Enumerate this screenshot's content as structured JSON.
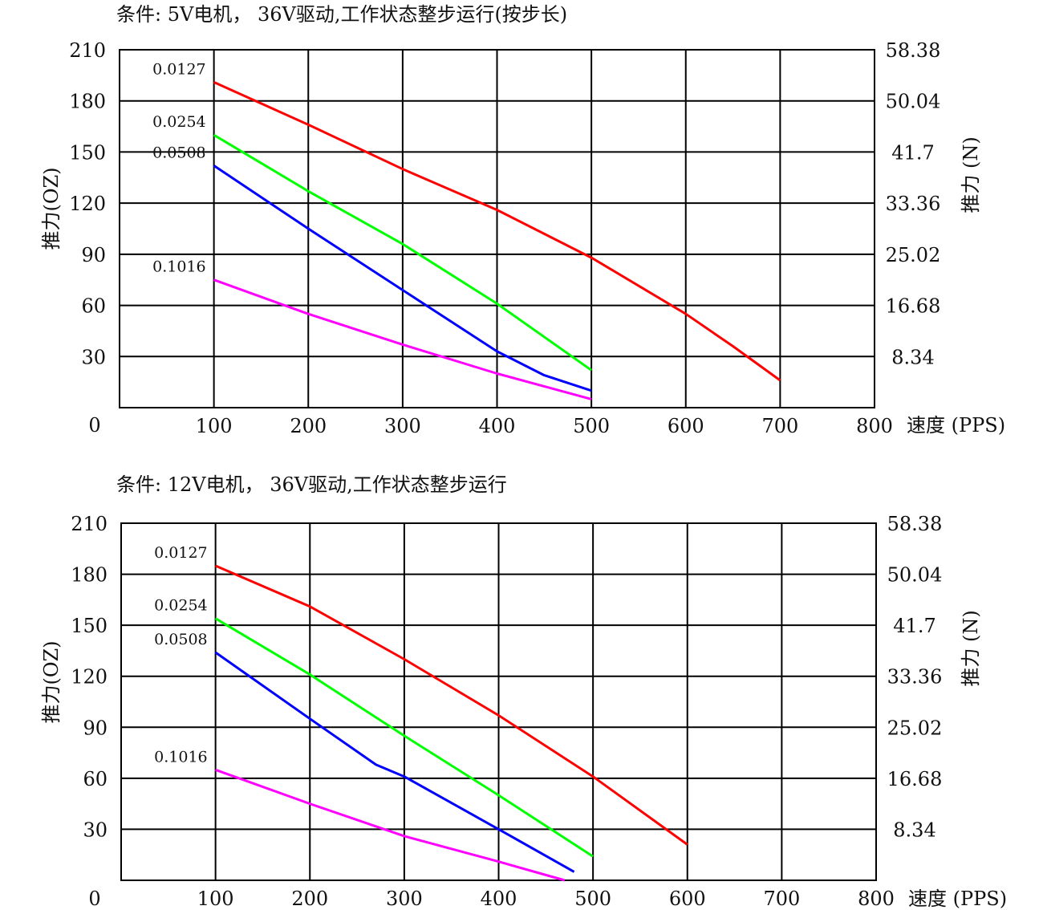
{
  "charts": [
    {
      "condition": "条件: 5V电机， 36V驱动,工作状态整步运行(按步长)",
      "left_axis_title": "推力(OZ)",
      "right_axis_title": "推力 (N)",
      "x_axis_title": "速度 (PPS)",
      "zero_label": "0"
    },
    {
      "condition": "条件: 12V电机， 36V驱动,工作状态整步运行",
      "left_axis_title": "推力(OZ)",
      "right_axis_title": "推力 (N)",
      "x_axis_title": "速度 (PPS)",
      "zero_label": "0"
    }
  ],
  "chart_data": [
    {
      "type": "line",
      "x_ticks": [
        "100",
        "200",
        "300",
        "400",
        "500",
        "600",
        "700",
        "800"
      ],
      "y_ticks": [
        "30",
        "60",
        "90",
        "120",
        "150",
        "180",
        "210"
      ],
      "y_right_ticks": [
        "8.34",
        "16.68",
        "25.02",
        "33.36",
        "41.7",
        "50.04",
        "58.38"
      ],
      "xlim": [
        0,
        800
      ],
      "ylim": [
        0,
        210
      ],
      "grid": true,
      "series": [
        {
          "name": "0.0127",
          "color": "#ff0000",
          "x": [
            100,
            200,
            300,
            400,
            500,
            600,
            650,
            700
          ],
          "y": [
            191,
            166,
            140,
            116,
            88,
            55,
            36,
            16
          ]
        },
        {
          "name": "0.0254",
          "color": "#00ff00",
          "x": [
            100,
            200,
            300,
            400,
            500
          ],
          "y": [
            160,
            127,
            96,
            61,
            22
          ]
        },
        {
          "name": "0.0508",
          "color": "#0000ff",
          "x": [
            100,
            200,
            300,
            400,
            450,
            500
          ],
          "y": [
            142,
            105,
            69,
            33,
            19,
            10
          ]
        },
        {
          "name": "0.1016",
          "color": "#ff00ff",
          "x": [
            100,
            200,
            300,
            400,
            500
          ],
          "y": [
            75,
            55,
            37,
            20,
            5
          ]
        }
      ]
    },
    {
      "type": "line",
      "x_ticks": [
        "100",
        "200",
        "300",
        "400",
        "500",
        "600",
        "700",
        "800"
      ],
      "y_ticks": [
        "30",
        "60",
        "90",
        "120",
        "150",
        "180",
        "210"
      ],
      "y_right_ticks": [
        "8.34",
        "16.68",
        "25.02",
        "33.36",
        "41.7",
        "50.04",
        "58.38"
      ],
      "xlim": [
        0,
        800
      ],
      "ylim": [
        0,
        210
      ],
      "grid": true,
      "series": [
        {
          "name": "0.0127",
          "color": "#ff0000",
          "x": [
            100,
            200,
            300,
            400,
            500,
            600
          ],
          "y": [
            185,
            161,
            130,
            97,
            61,
            21
          ]
        },
        {
          "name": "0.0254",
          "color": "#00ff00",
          "x": [
            100,
            200,
            300,
            400,
            500
          ],
          "y": [
            154,
            121,
            85,
            50,
            14
          ]
        },
        {
          "name": "0.0508",
          "color": "#0000ff",
          "x": [
            100,
            200,
            270,
            300,
            400,
            480
          ],
          "y": [
            134,
            95,
            68,
            61,
            30,
            5
          ]
        },
        {
          "name": "0.1016",
          "color": "#ff00ff",
          "x": [
            100,
            200,
            300,
            400,
            470
          ],
          "y": [
            65,
            45,
            26,
            11,
            0
          ]
        }
      ]
    }
  ]
}
